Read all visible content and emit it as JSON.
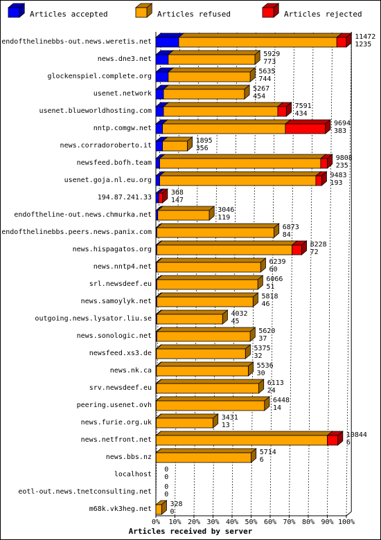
{
  "chart_data": {
    "type": "bar",
    "orientation": "horizontal",
    "stacked": true,
    "title": "",
    "xlabel": "Articles received by server",
    "ylabel": "",
    "xlim": [
      0,
      100
    ],
    "x_unit": "%",
    "x_ticks": [
      "0%",
      "10%",
      "20%",
      "30%",
      "40%",
      "50%",
      "60%",
      "70%",
      "80%",
      "90%",
      "100%"
    ],
    "grid": true,
    "legend_position": "top",
    "series": [
      {
        "key": "accepted",
        "name": "Articles accepted",
        "color": "#0000ff"
      },
      {
        "key": "refused",
        "name": "Articles refused",
        "color": "#ffa500"
      },
      {
        "key": "rejected",
        "name": "Articles rejected",
        "color": "#ff0000"
      }
    ],
    "rows": [
      {
        "server": "endofthelinebbs-out.news.weretis.net",
        "accepted_pct": 12.0,
        "refused_pct": 83.0,
        "rejected_pct": 5.0,
        "total_label": "11472",
        "accepted_label": "1235"
      },
      {
        "server": "news.dne3.net",
        "accepted_pct": 6.5,
        "refused_pct": 45.5,
        "rejected_pct": 0.0,
        "total_label": "5929",
        "accepted_label": "773"
      },
      {
        "server": "glockenspiel.complete.org",
        "accepted_pct": 6.5,
        "refused_pct": 43.0,
        "rejected_pct": 0.0,
        "total_label": "5635",
        "accepted_label": "744"
      },
      {
        "server": "usenet.network",
        "accepted_pct": 4.0,
        "refused_pct": 42.5,
        "rejected_pct": 0.0,
        "total_label": "5267",
        "accepted_label": "454"
      },
      {
        "server": "usenet.blueworldhosting.com",
        "accepted_pct": 4.0,
        "refused_pct": 60.0,
        "rejected_pct": 4.5,
        "total_label": "7591",
        "accepted_label": "434"
      },
      {
        "server": "nntp.comgw.net",
        "accepted_pct": 3.5,
        "refused_pct": 64.5,
        "rejected_pct": 21.0,
        "total_label": "9694",
        "accepted_label": "383"
      },
      {
        "server": "news.corradoroberto.it",
        "accepted_pct": 3.5,
        "refused_pct": 13.0,
        "rejected_pct": 0.0,
        "total_label": "1895",
        "accepted_label": "356"
      },
      {
        "server": "newsfeed.bofh.team",
        "accepted_pct": 2.0,
        "refused_pct": 84.5,
        "rejected_pct": 3.5,
        "total_label": "9808",
        "accepted_label": "235"
      },
      {
        "server": "usenet.goja.nl.eu.org",
        "accepted_pct": 2.0,
        "refused_pct": 82.0,
        "rejected_pct": 3.0,
        "total_label": "9483",
        "accepted_label": "193"
      },
      {
        "server": "194.87.241.33",
        "accepted_pct": 1.5,
        "refused_pct": 0.0,
        "rejected_pct": 2.0,
        "total_label": "368",
        "accepted_label": "147"
      },
      {
        "server": "endoftheline-out.news.chmurka.net",
        "accepted_pct": 1.0,
        "refused_pct": 27.0,
        "rejected_pct": 0.0,
        "total_label": "3046",
        "accepted_label": "119"
      },
      {
        "server": "endofthelinebbs.peers.news.panix.com",
        "accepted_pct": 0.5,
        "refused_pct": 61.5,
        "rejected_pct": 0.0,
        "total_label": "6873",
        "accepted_label": "84"
      },
      {
        "server": "news.hispagatos.org",
        "accepted_pct": 0.5,
        "refused_pct": 71.0,
        "rejected_pct": 5.0,
        "total_label": "8228",
        "accepted_label": "72"
      },
      {
        "server": "news.nntp4.net",
        "accepted_pct": 0.5,
        "refused_pct": 54.5,
        "rejected_pct": 0.0,
        "total_label": "6239",
        "accepted_label": "60"
      },
      {
        "server": "srl.newsdeef.eu",
        "accepted_pct": 0.5,
        "refused_pct": 53.0,
        "rejected_pct": 0.0,
        "total_label": "6066",
        "accepted_label": "51"
      },
      {
        "server": "news.samoylyk.net",
        "accepted_pct": 0.5,
        "refused_pct": 50.5,
        "rejected_pct": 0.0,
        "total_label": "5818",
        "accepted_label": "46"
      },
      {
        "server": "outgoing.news.lysator.liu.se",
        "accepted_pct": 0.5,
        "refused_pct": 34.5,
        "rejected_pct": 0.0,
        "total_label": "4032",
        "accepted_label": "45"
      },
      {
        "server": "news.sonologic.net",
        "accepted_pct": 0.5,
        "refused_pct": 49.0,
        "rejected_pct": 0.0,
        "total_label": "5620",
        "accepted_label": "37"
      },
      {
        "server": "newsfeed.xs3.de",
        "accepted_pct": 0.3,
        "refused_pct": 46.7,
        "rejected_pct": 0.0,
        "total_label": "5375",
        "accepted_label": "32"
      },
      {
        "server": "news.nk.ca",
        "accepted_pct": 0.3,
        "refused_pct": 48.2,
        "rejected_pct": 0.0,
        "total_label": "5536",
        "accepted_label": "30"
      },
      {
        "server": "srv.newsdeef.eu",
        "accepted_pct": 0.3,
        "refused_pct": 53.7,
        "rejected_pct": 0.0,
        "total_label": "6113",
        "accepted_label": "24"
      },
      {
        "server": "peering.usenet.ovh",
        "accepted_pct": 0.2,
        "refused_pct": 56.8,
        "rejected_pct": 0.0,
        "total_label": "6448",
        "accepted_label": "14"
      },
      {
        "server": "news.furie.org.uk",
        "accepted_pct": 0.2,
        "refused_pct": 29.8,
        "rejected_pct": 0.0,
        "total_label": "3431",
        "accepted_label": "13"
      },
      {
        "server": "news.netfront.net",
        "accepted_pct": 0.1,
        "refused_pct": 89.9,
        "rejected_pct": 5.5,
        "total_label": "10844",
        "accepted_label": "6"
      },
      {
        "server": "news.bbs.nz",
        "accepted_pct": 0.1,
        "refused_pct": 49.9,
        "rejected_pct": 0.0,
        "total_label": "5714",
        "accepted_label": "6"
      },
      {
        "server": "localhost",
        "accepted_pct": 0.0,
        "refused_pct": 0.0,
        "rejected_pct": 0.0,
        "total_label": "0",
        "accepted_label": "0"
      },
      {
        "server": "eotl-out.news.tnetconsulting.net",
        "accepted_pct": 0.0,
        "refused_pct": 0.0,
        "rejected_pct": 0.0,
        "total_label": "0",
        "accepted_label": "0"
      },
      {
        "server": "m68k.vk3heg.net",
        "accepted_pct": 0.0,
        "refused_pct": 3.0,
        "rejected_pct": 0.0,
        "total_label": "328",
        "accepted_label": "0"
      }
    ]
  }
}
